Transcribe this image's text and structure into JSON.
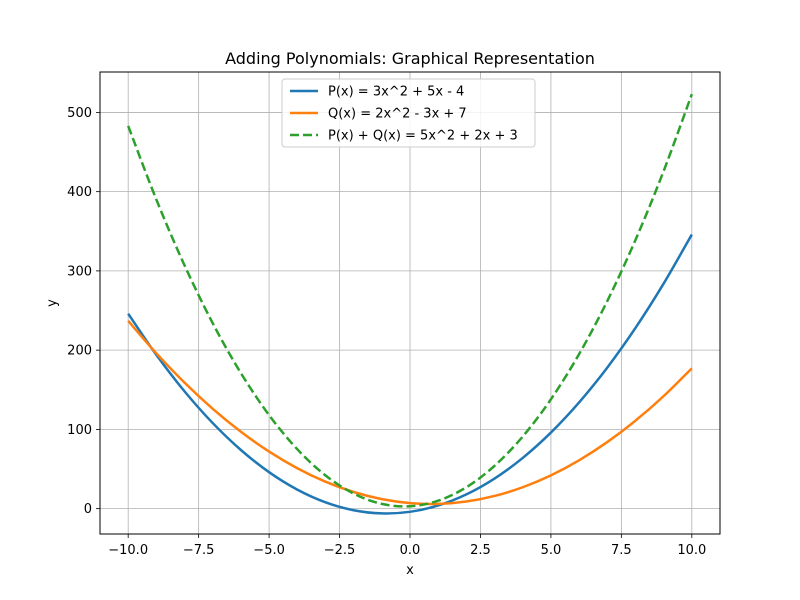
{
  "chart_data": {
    "type": "line",
    "title": "Adding Polynomials: Graphical Representation",
    "xlabel": "x",
    "ylabel": "y",
    "xlim": [
      -11,
      11
    ],
    "ylim": [
      -32,
      551
    ],
    "grid": true,
    "legend_position": "top-center",
    "x_ticks": [
      -10,
      -7.5,
      -5,
      -2.5,
      0,
      2.5,
      5,
      7.5,
      10
    ],
    "x_tick_labels": [
      "−10.0",
      "−7.5",
      "−5.0",
      "−2.5",
      "0.0",
      "2.5",
      "5.0",
      "7.5",
      "10.0"
    ],
    "y_ticks": [
      0,
      100,
      200,
      300,
      400,
      500
    ],
    "y_tick_labels": [
      "0",
      "100",
      "200",
      "300",
      "400",
      "500"
    ],
    "x": [
      -10,
      -9,
      -8,
      -7,
      -6,
      -5,
      -4,
      -3,
      -2,
      -1,
      0,
      1,
      2,
      3,
      4,
      5,
      6,
      7,
      8,
      9,
      10
    ],
    "series": [
      {
        "name": "P(x) = 3x^2 + 5x - 4",
        "color": "#1f77b4",
        "dash": "solid",
        "values": [
          246,
          194,
          148,
          108,
          74,
          46,
          24,
          8,
          -2,
          -6,
          -4,
          4,
          18,
          38,
          64,
          96,
          134,
          178,
          228,
          284,
          346
        ]
      },
      {
        "name": "Q(x) = 2x^2 - 3x + 7",
        "color": "#ff7f0e",
        "dash": "solid",
        "values": [
          237,
          196,
          159,
          126,
          97,
          72,
          51,
          34,
          21,
          12,
          7,
          6,
          9,
          16,
          27,
          42,
          61,
          84,
          111,
          142,
          177
        ]
      },
      {
        "name": "P(x) + Q(x) = 5x^2 + 2x + 3",
        "color": "#2ca02c",
        "dash": "dashed",
        "values": [
          483,
          390,
          307,
          234,
          171,
          118,
          75,
          42,
          19,
          6,
          3,
          10,
          27,
          54,
          91,
          138,
          195,
          262,
          339,
          426,
          523
        ]
      }
    ]
  }
}
